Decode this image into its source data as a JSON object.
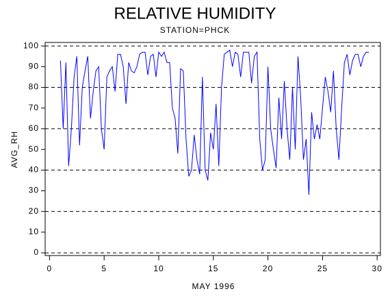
{
  "chart_data": {
    "type": "line",
    "title": "RELATIVE HUMIDITY",
    "subtitle": "STATION=PHCK",
    "x_label": "MAY 1996",
    "y_label": "AVG_RH",
    "color": "#0000ff",
    "grid": true,
    "xlim": [
      -0.4,
      30.3
    ],
    "ylim": [
      -1.3,
      101.7
    ],
    "xticks": [
      0,
      5,
      10,
      15,
      20,
      25,
      30
    ],
    "yticks": [
      0,
      10,
      20,
      30,
      40,
      50,
      60,
      70,
      80,
      90,
      100
    ],
    "x": [
      1,
      1.25,
      1.5,
      1.75,
      2,
      2.25,
      2.5,
      2.75,
      3,
      3.25,
      3.5,
      3.75,
      4,
      4.25,
      4.5,
      4.75,
      5,
      5.25,
      5.5,
      5.75,
      6,
      6.25,
      6.5,
      6.75,
      7,
      7.25,
      7.5,
      7.75,
      8,
      8.25,
      8.5,
      8.75,
      9,
      9.25,
      9.5,
      9.75,
      10,
      10.25,
      10.5,
      10.75,
      11,
      11.25,
      11.5,
      11.75,
      12,
      12.25,
      12.5,
      12.75,
      13,
      13.25,
      13.5,
      13.75,
      14,
      14.25,
      14.5,
      14.75,
      15,
      15.25,
      15.5,
      15.75,
      16,
      16.25,
      16.5,
      16.75,
      17,
      17.25,
      17.5,
      17.75,
      18,
      18.25,
      18.5,
      18.75,
      19,
      19.25,
      19.5,
      19.75,
      20,
      20.25,
      20.5,
      20.75,
      21,
      21.25,
      21.5,
      21.75,
      22,
      22.25,
      22.5,
      22.75,
      23,
      23.25,
      23.5,
      23.75,
      24,
      24.25,
      24.5,
      24.75,
      25,
      25.25,
      25.5,
      25.75,
      26,
      26.25,
      26.5,
      26.75,
      27,
      27.25,
      27.5,
      27.75,
      28,
      28.25,
      28.5,
      28.75,
      29,
      29.25
    ],
    "values": [
      93,
      60,
      92,
      42,
      60,
      85,
      95,
      52,
      80,
      88,
      95,
      65,
      78,
      88,
      90,
      60,
      50,
      85,
      88,
      90,
      78,
      96,
      96,
      90,
      72,
      92,
      88,
      87,
      90,
      96,
      97,
      97,
      86,
      95,
      96,
      85,
      97,
      95,
      97,
      92,
      92,
      70,
      65,
      48,
      89,
      88,
      55,
      37,
      40,
      57,
      45,
      38,
      85,
      40,
      35,
      58,
      50,
      72,
      42,
      80,
      96,
      97,
      98,
      90,
      97,
      96,
      85,
      97,
      97,
      97,
      82,
      95,
      97,
      55,
      40,
      45,
      90,
      60,
      50,
      41,
      75,
      55,
      83,
      60,
      45,
      80,
      50,
      95,
      75,
      45,
      55,
      28,
      68,
      55,
      62,
      55,
      70,
      85,
      78,
      68,
      88,
      60,
      45,
      70,
      92,
      96,
      86,
      93,
      96,
      96,
      90,
      95,
      97,
      97
    ]
  }
}
